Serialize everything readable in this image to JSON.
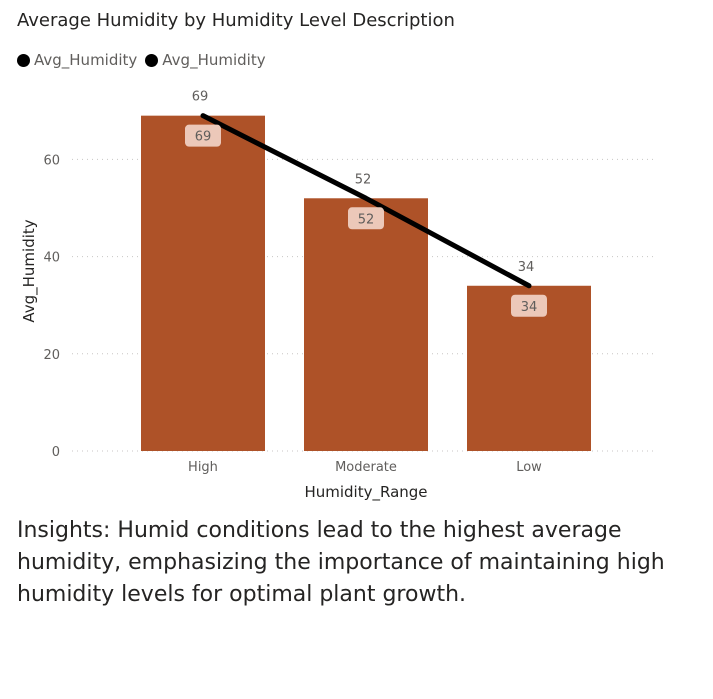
{
  "title": "Average Humidity by Humidity Level Description",
  "legend": [
    {
      "label": "Avg_Humidity",
      "color": "#000000"
    },
    {
      "label": "Avg_Humidity",
      "color": "#000000"
    }
  ],
  "insights": "Insights: Humid conditions lead to the highest average humidity, emphasizing the importance of maintaining high humidity levels for optimal plant growth.",
  "colors": {
    "bar": "#ae5228",
    "line": "#000000",
    "bar_label_bg": "#ecc8b9",
    "grid": "#c8c6c4",
    "axis_text": "#605e5c",
    "axis_title": "#252423"
  },
  "chart_data": {
    "type": "bar",
    "combo": "bar+line",
    "categories": [
      "High",
      "Moderate",
      "Low"
    ],
    "series": [
      {
        "name": "Avg_Humidity",
        "type": "bar",
        "values": [
          69,
          52,
          34
        ]
      },
      {
        "name": "Avg_Humidity",
        "type": "line",
        "values": [
          69,
          52,
          34
        ]
      }
    ],
    "xlabel": "Humidity_Range",
    "ylabel": "Avg_Humidity",
    "ylim": [
      0,
      70
    ],
    "yticks": [
      0,
      20,
      40,
      60
    ],
    "grid": true,
    "legend_position": "top-left"
  }
}
